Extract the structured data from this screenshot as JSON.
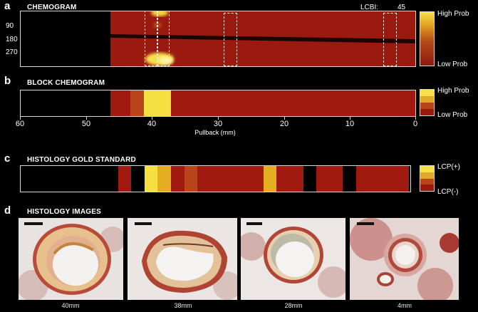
{
  "panels": {
    "a": {
      "letter": "a",
      "title": "CHEMOGRAM",
      "lcbi_label": "LCBI:",
      "lcbi_value": "45",
      "y_ticks": [
        "90",
        "180",
        "270"
      ],
      "scale_high": "High Prob",
      "scale_low": "Low Prob",
      "colors": {
        "base": "#9a1a10",
        "dark": "#200806",
        "bright": "#f6e04a",
        "warm": "#e8a020"
      }
    },
    "b": {
      "letter": "b",
      "title": "BLOCK CHEMOGRAM",
      "scale_high": "High Prob",
      "scale_low": "Low Prob"
    },
    "axis": {
      "ticks": [
        "60",
        "50",
        "40",
        "30",
        "20",
        "10",
        "0"
      ],
      "label": "Pullback (mm)"
    },
    "c": {
      "letter": "c",
      "title": "HISTOLOGY GOLD STANDARD",
      "scale_high": "LCP(+)",
      "scale_low": "LCP(-)"
    },
    "d": {
      "letter": "d",
      "title": "HISTOLOGY IMAGES",
      "captions": [
        "40mm",
        "38mm",
        "28mm",
        "4mm"
      ]
    }
  },
  "block_colors": {
    "red": "#a11a10",
    "orange": "#b9461a",
    "yellow": "#f5e042",
    "black": "#000000",
    "gold": "#e4ad22",
    "brown": "#8a1e12"
  }
}
